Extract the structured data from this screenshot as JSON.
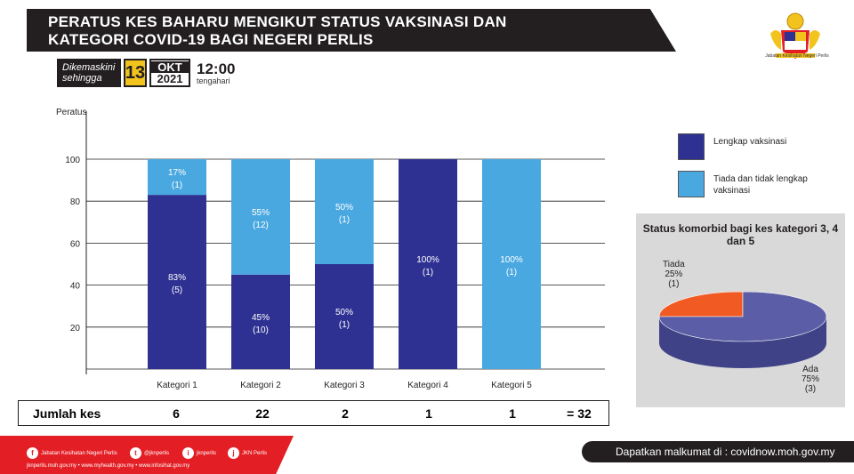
{
  "header": {
    "title_line1": "PERATUS KES BAHARU MENGIKUT STATUS VAKSINASI  DAN",
    "title_line2": "KATEGORI COVID-19 BAGI NEGERI PERLIS",
    "logo_caption": "Jabatan Kesihatan Negeri Perlis"
  },
  "update": {
    "label_line1": "Dikemaskini",
    "label_line2": "sehingga",
    "day": "13",
    "month": "OKT",
    "year": "2021",
    "time": "12:00",
    "time_label": "tengahari"
  },
  "legend": {
    "items": [
      {
        "label": "Lengkap vaksinasi",
        "color": "#2e3192"
      },
      {
        "label": "Tiada dan tidak lengkap vaksinasi",
        "color": "#4aa8e0"
      }
    ]
  },
  "chart_data": [
    {
      "type": "bar",
      "stacked": true,
      "ylabel": "Peratus",
      "ylim": [
        0,
        100
      ],
      "yticks": [
        20,
        40,
        60,
        80,
        100
      ],
      "categories": [
        "Kategori 1",
        "Kategori 2",
        "Kategori 3",
        "Kategori 4",
        "Kategori 5"
      ],
      "series": [
        {
          "name": "Lengkap vaksinasi",
          "color": "#2e3192",
          "values": [
            83,
            45,
            50,
            100,
            0
          ],
          "labels": [
            "83%",
            "45%",
            "50%",
            "100%",
            ""
          ],
          "counts": [
            "(5)",
            "(10)",
            "(1)",
            "(1)",
            ""
          ]
        },
        {
          "name": "Tiada dan tidak lengkap vaksinasi",
          "color": "#4aa8e0",
          "values": [
            17,
            55,
            50,
            0,
            100
          ],
          "labels": [
            "17%",
            "55%",
            "50%",
            "",
            "100%"
          ],
          "counts": [
            "(1)",
            "(12)",
            "(1)",
            "",
            "(1)"
          ]
        }
      ],
      "grid": true
    },
    {
      "type": "pie",
      "title": "Status komorbid bagi kes kategori 3, 4 dan 5",
      "slices": [
        {
          "label": "Ada",
          "value": 75,
          "pct": "75%",
          "count": "(3)",
          "color": "#5b5ea6"
        },
        {
          "label": "Tiada",
          "value": 25,
          "pct": "25%",
          "count": "(1)",
          "color": "#f15a22"
        }
      ]
    }
  ],
  "totals": {
    "label": "Jumlah kes",
    "values": [
      "6",
      "22",
      "2",
      "1",
      "1"
    ],
    "sum": "= 32"
  },
  "footer": {
    "social": [
      {
        "icon": "f",
        "text": "Jabatan Kesihatan Negeri Perlis"
      },
      {
        "icon": "t",
        "text": "@jknperlis"
      },
      {
        "icon": "i",
        "text": "jknperlis"
      },
      {
        "icon": "j",
        "text": "JKN Perlis"
      }
    ],
    "links": "jknperlis.moh.gov.my  •  www.myhealth.gov.my  •  www.infosihat.gov.my",
    "info": "Dapatkan malkumat di : covidnow.moh.gov.my"
  }
}
